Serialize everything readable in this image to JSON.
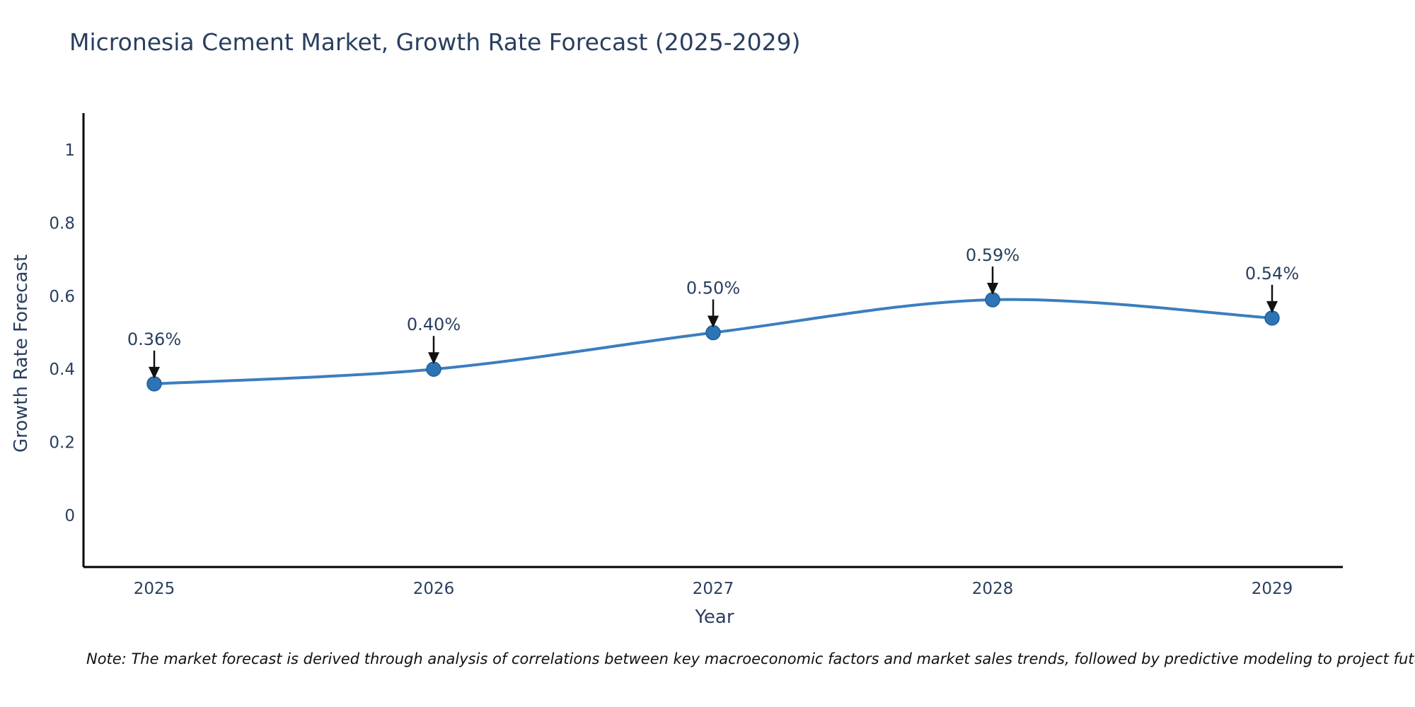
{
  "page": {
    "background": "#ffffff"
  },
  "note": {
    "text": "Note: The market forecast is derived through analysis of correlations between key macroeconomic factors and market sales trends, followed by predictive modeling to project future sales"
  },
  "chart_data": {
    "type": "line",
    "title": "Micronesia Cement Market, Growth Rate Forecast (2025-2029)",
    "xlabel": "Year",
    "ylabel": "Growth Rate Forecast",
    "x": [
      2025,
      2026,
      2027,
      2028,
      2029
    ],
    "series": [
      {
        "name": "Growth Rate Forecast",
        "values": [
          0.36,
          0.4,
          0.5,
          0.59,
          0.54
        ]
      }
    ],
    "point_labels": [
      "0.36%",
      "0.40%",
      "0.50%",
      "0.59%",
      "0.54%"
    ],
    "xtick_labels": [
      "2025",
      "2026",
      "2027",
      "2028",
      "2029"
    ],
    "yticks": [
      0,
      0.2,
      0.4,
      0.6,
      0.8,
      1
    ],
    "ytick_labels": [
      "0",
      "0.2",
      "0.4",
      "0.6",
      "0.8",
      "1"
    ],
    "xlim": [
      2024.75,
      2029.25
    ],
    "ylim": [
      -0.14,
      1.1
    ],
    "grid": false,
    "legend": false,
    "line_shape": "spline",
    "colors": {
      "line": "#3b7ebe",
      "marker": "#2e74b5",
      "marker_edge": "#1f5f9e",
      "axis": "#000000",
      "tick_text": "#2a3f5f",
      "annotation_text": "#2a3f5f",
      "arrow": "#111111"
    }
  }
}
